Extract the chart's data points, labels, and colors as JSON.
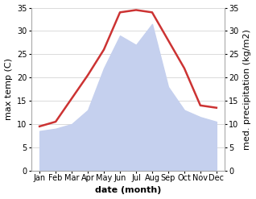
{
  "months": [
    "Jan",
    "Feb",
    "Mar",
    "Apr",
    "May",
    "Jun",
    "Jul",
    "Aug",
    "Sep",
    "Oct",
    "Nov",
    "Dec"
  ],
  "temperature": [
    9.5,
    10.5,
    15.5,
    20.5,
    26.0,
    34.0,
    34.5,
    34.0,
    28.0,
    22.0,
    14.0,
    13.5
  ],
  "precipitation": [
    8.5,
    9.0,
    10.0,
    13.0,
    22.0,
    29.0,
    27.0,
    31.5,
    18.0,
    13.0,
    11.5,
    10.5
  ],
  "temp_color": "#cc3333",
  "precip_color": "#c5d0ee",
  "ylim": [
    0,
    35
  ],
  "yticks": [
    0,
    5,
    10,
    15,
    20,
    25,
    30,
    35
  ],
  "xlabel": "date (month)",
  "ylabel_left": "max temp (C)",
  "ylabel_right": "med. precipitation (kg/m2)",
  "bg_color": "#ffffff",
  "grid_color": "#cccccc",
  "label_fontsize": 8,
  "tick_fontsize": 7,
  "spine_color": "#aaaaaa",
  "line_width": 1.8
}
